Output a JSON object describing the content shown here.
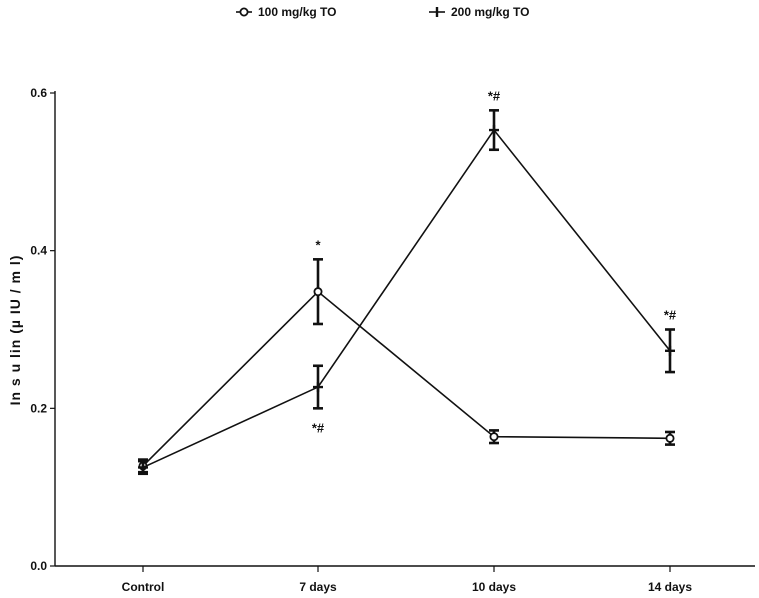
{
  "chart_data": {
    "type": "line",
    "title": "",
    "xlabel": "",
    "ylabel": "In s u lin  (µ IU / m l)",
    "categories": [
      "Control",
      "7 days",
      "10 days",
      "14 days"
    ],
    "ylim": [
      0.0,
      0.6
    ],
    "yticks": [
      0.0,
      0.2,
      0.4,
      0.6
    ],
    "ytick_labels": [
      "0.0",
      "0.2",
      "0.4",
      "0.6"
    ],
    "legend_position": "top",
    "grid": false,
    "series": [
      {
        "name": "100 mg/kg TO",
        "marker": "circle",
        "values": [
          0.127,
          0.348,
          0.164,
          0.162
        ],
        "errors": [
          0.008,
          0.041,
          0.008,
          0.008
        ]
      },
      {
        "name": "200 mg/kg TO",
        "marker": "plus",
        "values": [
          0.125,
          0.227,
          0.553,
          0.273
        ],
        "errors": [
          0.008,
          0.027,
          0.025,
          0.027
        ]
      }
    ],
    "annotations": [
      {
        "category": "7 days",
        "series": "100 mg/kg TO",
        "text": "*",
        "side": "above"
      },
      {
        "category": "7 days",
        "series": "200 mg/kg TO",
        "text": "*#",
        "side": "below"
      },
      {
        "category": "10 days",
        "series": "200 mg/kg TO",
        "text": "*#",
        "side": "above"
      },
      {
        "category": "14 days",
        "series": "200 mg/kg TO",
        "text": "*#",
        "side": "above"
      }
    ]
  }
}
